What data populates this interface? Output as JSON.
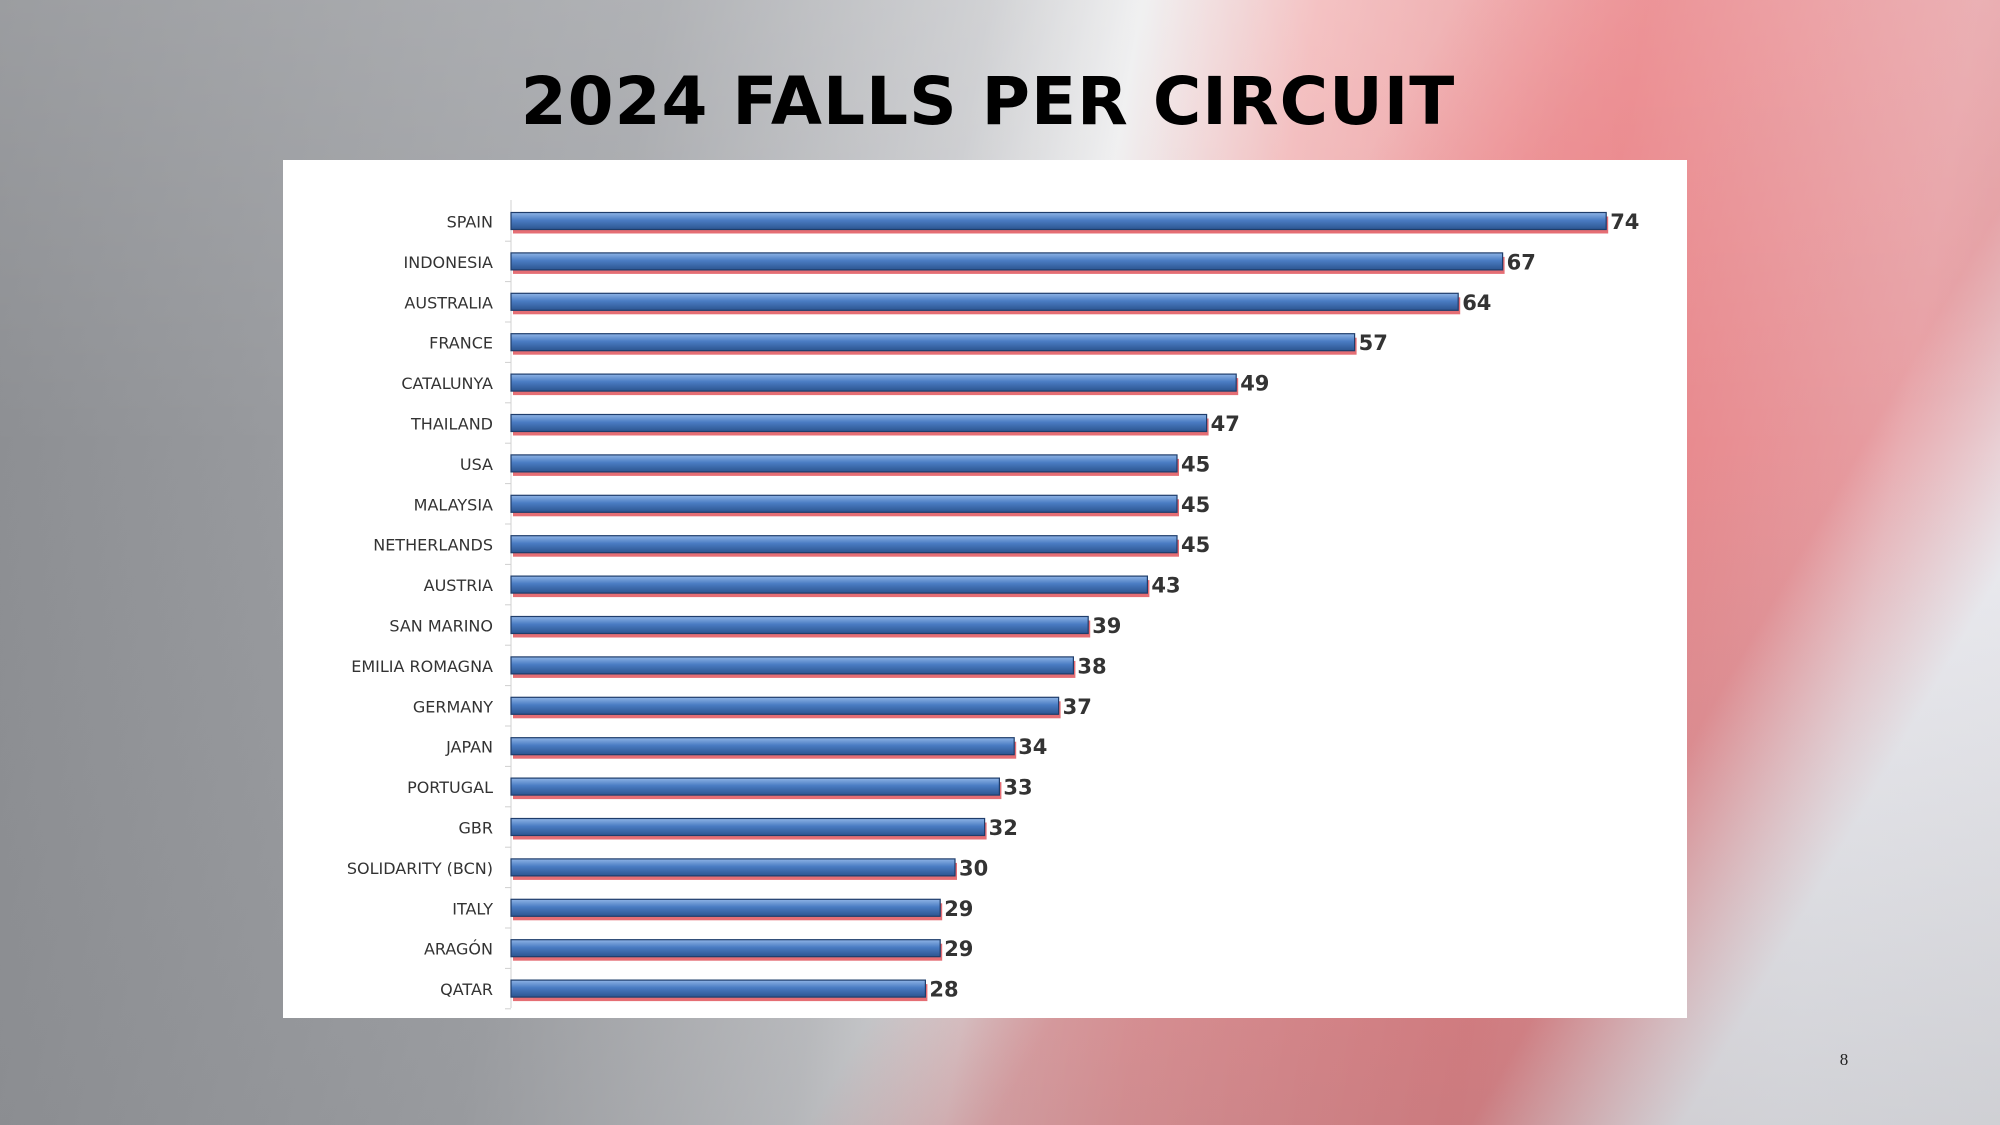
{
  "chart_data": {
    "type": "hbar",
    "title": "2024 FALLS PER CIRCUIT",
    "categories": [
      "SPAIN",
      "INDONESIA",
      "AUSTRALIA",
      "FRANCE",
      "CATALUNYA",
      "THAILAND",
      "USA",
      "MALAYSIA",
      "NETHERLANDS",
      "AUSTRIA",
      "SAN MARINO",
      "EMILIA ROMAGNA",
      "GERMANY",
      "JAPAN",
      "PORTUGAL",
      "GBR",
      "SOLIDARITY (BCN)",
      "ITALY",
      "ARAGÓN",
      "QATAR"
    ],
    "values": [
      74,
      67,
      64,
      57,
      49,
      47,
      45,
      45,
      45,
      43,
      39,
      38,
      37,
      34,
      33,
      32,
      30,
      29,
      29,
      28
    ],
    "color": "#4a7cc3",
    "xlim": [
      0,
      80
    ]
  },
  "slide": {
    "page_number": "8"
  }
}
